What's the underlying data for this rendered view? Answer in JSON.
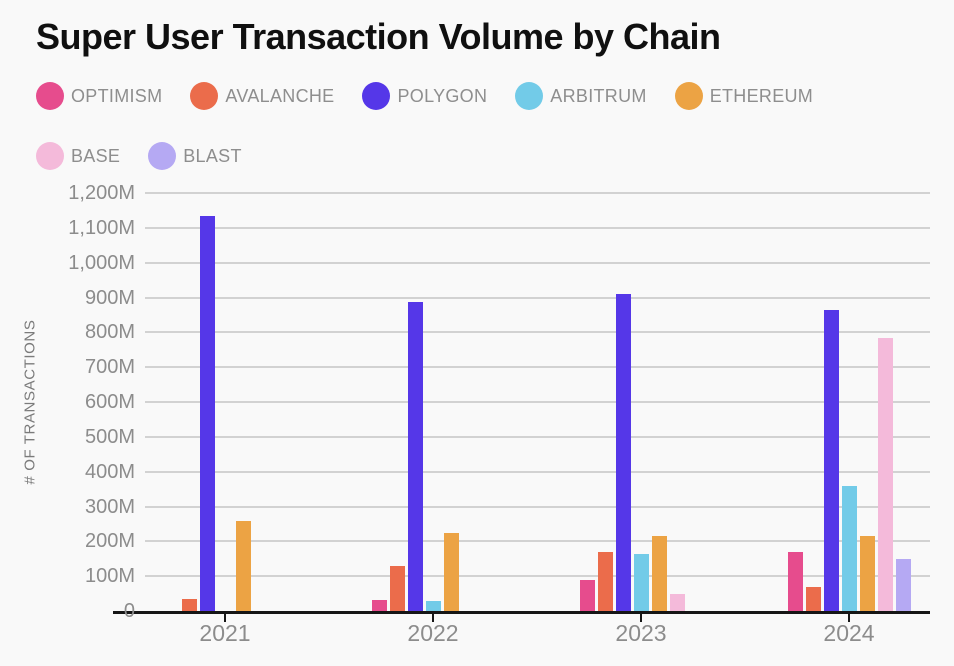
{
  "chart_data": {
    "type": "bar",
    "title": "Super User Transaction Volume by Chain",
    "xlabel": "",
    "ylabel": "# OF TRANSACTIONS",
    "categories": [
      "2021",
      "2022",
      "2023",
      "2024"
    ],
    "series": [
      {
        "name": "OPTIMISM",
        "color": "#e64c8d",
        "values": [
          0,
          32,
          88,
          170
        ]
      },
      {
        "name": "AVALANCHE",
        "color": "#eb6c4b",
        "values": [
          35,
          128,
          170,
          70
        ]
      },
      {
        "name": "POLYGON",
        "color": "#5537e8",
        "values": [
          1135,
          888,
          910,
          865
        ]
      },
      {
        "name": "ARBITRUM",
        "color": "#72cbe8",
        "values": [
          0,
          28,
          165,
          360
        ]
      },
      {
        "name": "ETHEREUM",
        "color": "#eca344",
        "values": [
          258,
          225,
          215,
          215
        ]
      },
      {
        "name": "BASE",
        "color": "#f4bada",
        "values": [
          0,
          0,
          50,
          785
        ]
      },
      {
        "name": "BLAST",
        "color": "#b5a9f3",
        "values": [
          0,
          0,
          0,
          150
        ]
      }
    ],
    "ylim": [
      0,
      1200
    ],
    "ytick_step": 100,
    "ytick_labels": [
      "0",
      "100M",
      "200M",
      "300M",
      "400M",
      "500M",
      "600M",
      "700M",
      "800M",
      "900M",
      "1,000M",
      "1,100M",
      "1,200M"
    ],
    "grid": true,
    "legend_position": "top",
    "legend_row_break_after": 5
  },
  "style": {
    "background": "#f9f9f9",
    "title_color": "#101010",
    "axis_text_color": "#8c8c8c",
    "legend_text_color": "#8e8e8e",
    "gridline_color": "#d2d2d2",
    "baseline_color": "#161616"
  }
}
